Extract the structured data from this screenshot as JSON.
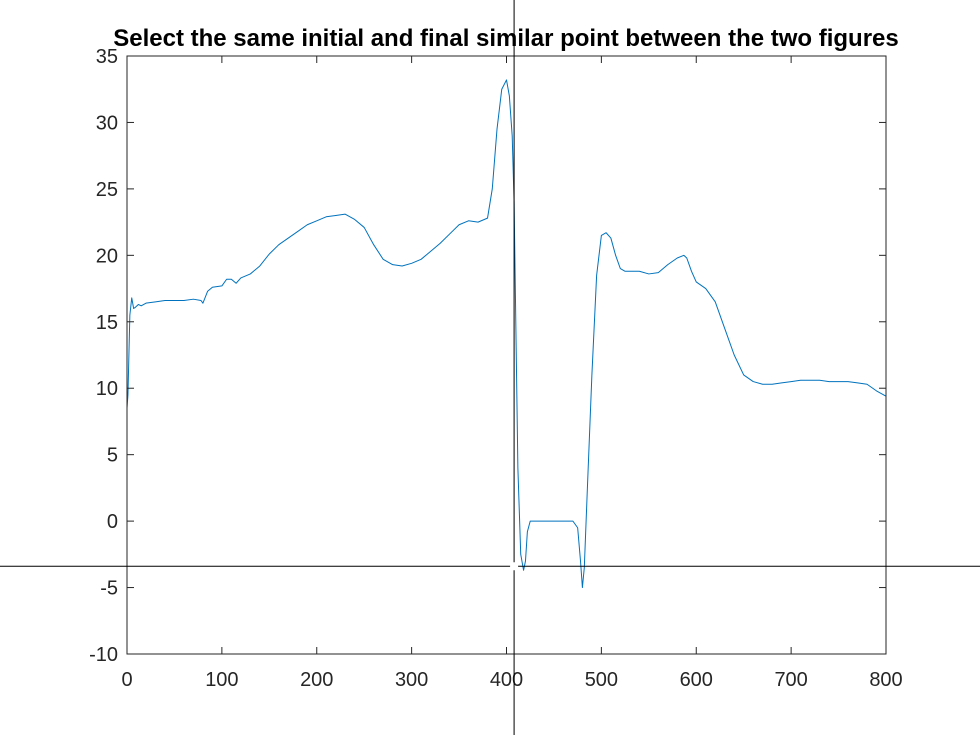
{
  "window": {
    "title": "Select the same initial and final similar point between the two figures"
  },
  "chart_data": {
    "type": "line",
    "title": "Select the same initial and final similar point between the two figures",
    "xlabel": "",
    "ylabel": "",
    "xlim": [
      0,
      800
    ],
    "ylim": [
      -10,
      35
    ],
    "xticks": [
      0,
      100,
      200,
      300,
      400,
      500,
      600,
      700,
      800
    ],
    "yticks": [
      -10,
      -5,
      0,
      5,
      10,
      15,
      20,
      25,
      30,
      35
    ],
    "grid": false,
    "legend": "none",
    "colors": {
      "series": "#0072BD",
      "axes": "#262626",
      "crosshair": "#000000"
    },
    "crosshair": {
      "x": 408,
      "y": -3.4
    },
    "series": [
      {
        "x": [
          0,
          1,
          3,
          5,
          7,
          9,
          12,
          15,
          20,
          30,
          40,
          50,
          60,
          70,
          78,
          80,
          85,
          90,
          100,
          105,
          110,
          115,
          120,
          130,
          140,
          150,
          160,
          170,
          180,
          190,
          200,
          210,
          220,
          230,
          240,
          250,
          260,
          270,
          280,
          290,
          300,
          310,
          320,
          330,
          340,
          350,
          360,
          370,
          380,
          385,
          390,
          395,
          400,
          403,
          406,
          408,
          410,
          412,
          415,
          418,
          420,
          422,
          425,
          430,
          440,
          450,
          460,
          470,
          475,
          478,
          480,
          482,
          485,
          490,
          495,
          500,
          505,
          510,
          515,
          520,
          525,
          530,
          540,
          550,
          560,
          570,
          580,
          587,
          590,
          595,
          600,
          610,
          620,
          630,
          640,
          650,
          660,
          670,
          680,
          690,
          700,
          710,
          720,
          730,
          740,
          750,
          760,
          770,
          780,
          790,
          800
        ],
        "y": [
          8.5,
          9.5,
          15.5,
          16.8,
          16.0,
          16.1,
          16.3,
          16.2,
          16.4,
          16.5,
          16.6,
          16.6,
          16.6,
          16.7,
          16.6,
          16.4,
          17.3,
          17.6,
          17.7,
          18.2,
          18.2,
          17.9,
          18.3,
          18.6,
          19.2,
          20.1,
          20.8,
          21.3,
          21.8,
          22.3,
          22.6,
          22.9,
          23.0,
          23.1,
          22.7,
          22.1,
          20.8,
          19.7,
          19.3,
          19.2,
          19.4,
          19.7,
          20.3,
          20.9,
          21.6,
          22.3,
          22.6,
          22.5,
          22.8,
          25.0,
          29.5,
          32.5,
          33.2,
          32.0,
          29.0,
          24.0,
          14.0,
          4.0,
          -2.5,
          -3.7,
          -3.0,
          -0.8,
          0.0,
          0.0,
          0.0,
          0.0,
          0.0,
          0.0,
          -0.5,
          -3.0,
          -5.0,
          -3.5,
          2.0,
          11.0,
          18.5,
          21.5,
          21.7,
          21.3,
          20.0,
          19.0,
          18.8,
          18.8,
          18.8,
          18.6,
          18.7,
          19.3,
          19.8,
          20.0,
          19.8,
          18.8,
          18.0,
          17.5,
          16.5,
          14.5,
          12.5,
          11.0,
          10.5,
          10.3,
          10.3,
          10.4,
          10.5,
          10.6,
          10.6,
          10.6,
          10.5,
          10.5,
          10.5,
          10.4,
          10.3,
          9.8,
          9.4
        ]
      }
    ]
  }
}
